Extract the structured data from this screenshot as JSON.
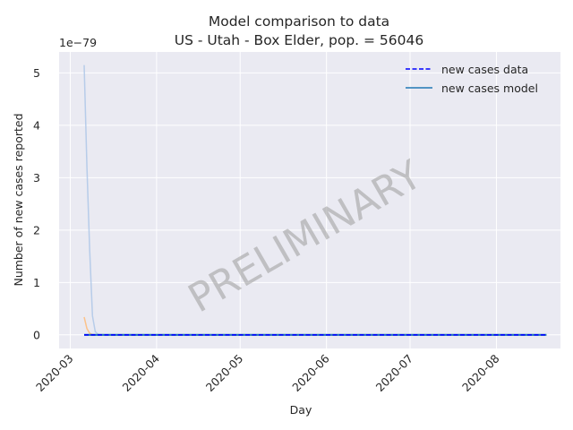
{
  "chart_data": {
    "type": "line",
    "title": "Model comparison to data",
    "subtitle": "US - Utah - Box Elder, pop. = 56046",
    "xlabel": "Day",
    "ylabel": "Number of new cases reported",
    "y_offset_label": "1e−79",
    "y_scale": 1e-79,
    "xlim": [
      "2020-02-26",
      "2020-08-24"
    ],
    "ylim": [
      -2.6e-80,
      5.4e-79
    ],
    "x_ticks": [
      "2020-03-01",
      "2020-04-01",
      "2020-05-01",
      "2020-06-01",
      "2020-07-01",
      "2020-08-01"
    ],
    "x_tick_labels": [
      "2020-03",
      "2020-04",
      "2020-05",
      "2020-06",
      "2020-07",
      "2020-08"
    ],
    "y_ticks": [
      0,
      1e-79,
      2e-79,
      3e-79,
      4e-79,
      5e-79
    ],
    "y_tick_labels": [
      "0",
      "1",
      "2",
      "3",
      "4",
      "5"
    ],
    "grid": true,
    "legend_position": "top-right",
    "watermark": "PRELIMINARY",
    "series": [
      {
        "name": "new cases data",
        "style": "dashed",
        "color": "#0000ff",
        "x": [
          "2020-03-06",
          "2020-08-19"
        ],
        "y": [
          0,
          0
        ]
      },
      {
        "name": "new cases model",
        "style": "solid",
        "color": "#1f77b4",
        "x": [
          "2020-03-06",
          "2020-03-07",
          "2020-03-08",
          "2020-03-09",
          "2020-03-10",
          "2020-03-11",
          "2020-08-19"
        ],
        "y": [
          0,
          0,
          0,
          0,
          0,
          0,
          0
        ]
      },
      {
        "style": "band",
        "color": "#aec7e8",
        "x": [
          "2020-03-06",
          "2020-03-07",
          "2020-03-08",
          "2020-03-09",
          "2020-03-10",
          "2020-03-11",
          "2020-03-13",
          "2020-08-19"
        ],
        "y": [
          5.15e-79,
          3.2e-79,
          1.6e-79,
          3.6e-80,
          6e-81,
          1e-81,
          0,
          0
        ]
      },
      {
        "style": "band",
        "color": "#ffbb78",
        "x": [
          "2020-03-06",
          "2020-03-07",
          "2020-03-08",
          "2020-03-09",
          "2020-03-11",
          "2020-08-19"
        ],
        "y": [
          3.4e-80,
          1.2e-80,
          3e-81,
          5e-82,
          0,
          0
        ]
      }
    ]
  }
}
